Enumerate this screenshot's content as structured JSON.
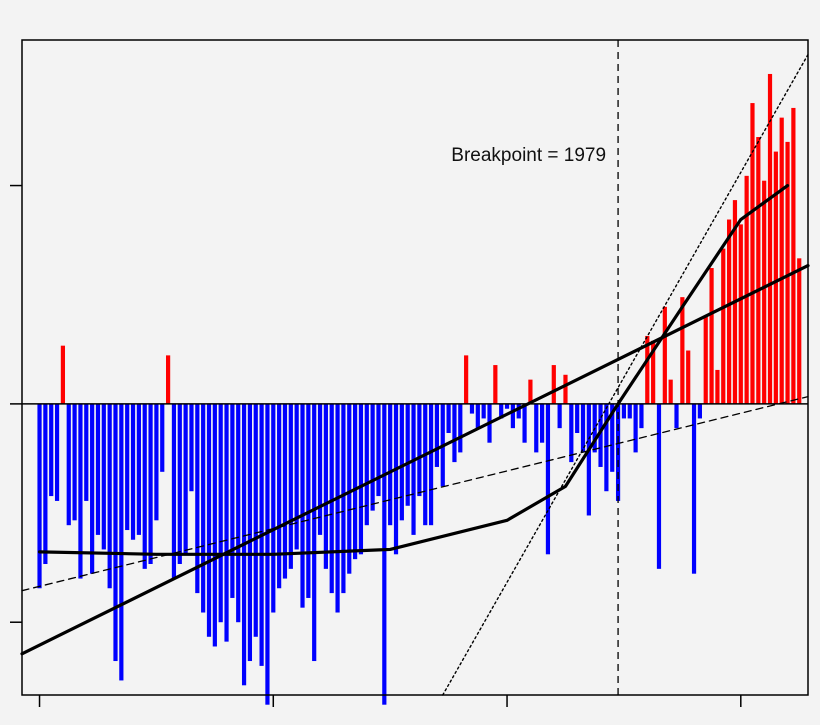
{
  "chart_data": {
    "type": "bar",
    "title": "",
    "xlabel": "",
    "ylabel": "",
    "xlim": [
      1877,
      2011.5
    ],
    "ylim": [
      -0.6,
      0.75
    ],
    "x_ticks": [
      1880,
      1920,
      1960,
      2000
    ],
    "y_ticks": [
      -0.45,
      0,
      0.45
    ],
    "show_tick_labels": false,
    "grid": false,
    "colors": {
      "positive": "#ff0000",
      "negative": "#0000ff",
      "lines": "#000000",
      "background": "#f3f3f3"
    },
    "annotation": {
      "text": "Breakpoint =  1979",
      "x": 1979
    },
    "series": [
      {
        "type": "bar",
        "x": [
          1880,
          1881,
          1882,
          1883,
          1884,
          1885,
          1886,
          1887,
          1888,
          1889,
          1890,
          1891,
          1892,
          1893,
          1894,
          1895,
          1896,
          1897,
          1898,
          1899,
          1900,
          1901,
          1902,
          1903,
          1904,
          1905,
          1906,
          1907,
          1908,
          1909,
          1910,
          1911,
          1912,
          1913,
          1914,
          1915,
          1916,
          1917,
          1918,
          1919,
          1920,
          1921,
          1922,
          1923,
          1924,
          1925,
          1926,
          1927,
          1928,
          1929,
          1930,
          1931,
          1932,
          1933,
          1934,
          1935,
          1936,
          1937,
          1938,
          1939,
          1940,
          1941,
          1942,
          1943,
          1944,
          1945,
          1946,
          1947,
          1948,
          1949,
          1950,
          1951,
          1952,
          1953,
          1954,
          1955,
          1956,
          1957,
          1958,
          1959,
          1960,
          1961,
          1962,
          1963,
          1964,
          1965,
          1966,
          1967,
          1968,
          1969,
          1970,
          1971,
          1972,
          1973,
          1974,
          1975,
          1976,
          1977,
          1978,
          1979,
          1980,
          1981,
          1982,
          1983,
          1984,
          1985,
          1986,
          1987,
          1988,
          1989,
          1990,
          1991,
          1992,
          1993,
          1994,
          1995,
          1996,
          1997,
          1998,
          1999,
          2000,
          2001,
          2002,
          2003,
          2004,
          2005,
          2006,
          2007,
          2008,
          2009,
          2010
        ],
        "values": [
          -0.38,
          -0.33,
          -0.19,
          -0.2,
          0.12,
          -0.25,
          -0.24,
          -0.36,
          -0.2,
          -0.35,
          -0.27,
          -0.3,
          -0.38,
          -0.53,
          -0.57,
          -0.26,
          -0.28,
          -0.27,
          -0.34,
          -0.33,
          -0.24,
          -0.14,
          0.1,
          -0.36,
          -0.33,
          -0.31,
          -0.18,
          -0.39,
          -0.43,
          -0.48,
          -0.5,
          -0.45,
          -0.49,
          -0.4,
          -0.45,
          -0.58,
          -0.53,
          -0.48,
          -0.54,
          -0.62,
          -0.43,
          -0.38,
          -0.36,
          -0.34,
          -0.3,
          -0.42,
          -0.4,
          -0.53,
          -0.27,
          -0.34,
          -0.39,
          -0.43,
          -0.39,
          -0.35,
          -0.32,
          -0.31,
          -0.25,
          -0.22,
          -0.19,
          -0.62,
          -0.25,
          -0.31,
          -0.24,
          -0.21,
          -0.27,
          -0.19,
          -0.25,
          -0.25,
          -0.13,
          -0.17,
          -0.06,
          -0.12,
          -0.1,
          0.1,
          -0.02,
          -0.05,
          -0.03,
          -0.08,
          0.08,
          -0.03,
          -0.01,
          -0.05,
          -0.03,
          -0.08,
          0.05,
          -0.1,
          -0.08,
          -0.31,
          0.08,
          -0.05,
          0.06,
          -0.12,
          -0.06,
          -0.1,
          -0.23,
          -0.1,
          -0.13,
          -0.18,
          -0.14,
          -0.2,
          -0.03,
          -0.03,
          -0.1,
          -0.05,
          0.14,
          0.13,
          -0.34,
          0.2,
          0.05,
          -0.05,
          0.22,
          0.11,
          -0.35,
          -0.03,
          0.18,
          0.28,
          0.07,
          0.32,
          0.38,
          0.42,
          0.37,
          0.47,
          0.62,
          0.55,
          0.46,
          0.68,
          0.52,
          0.59,
          0.54,
          0.61,
          0.3
        ]
      },
      {
        "type": "line",
        "name": "",
        "style": "solid",
        "x": [
          1877,
          2011.5
        ],
        "y": [
          -0.515,
          0.285
        ]
      },
      {
        "type": "line",
        "name": "",
        "style": "solid",
        "x": [
          1880,
          1900,
          1920,
          1940,
          1960,
          1970,
          1979,
          1990,
          2000,
          2008
        ],
        "y": [
          -0.305,
          -0.31,
          -0.31,
          -0.3,
          -0.24,
          -0.17,
          0.0,
          0.2,
          0.38,
          0.45
        ]
      },
      {
        "type": "line",
        "name": "",
        "style": "dashed",
        "x": [
          1877,
          2011.5
        ],
        "y": [
          -0.385,
          0.015
        ]
      },
      {
        "type": "line",
        "name": "",
        "style": "dotted",
        "x": [
          1949,
          2011.5
        ],
        "y": [
          -0.6,
          0.72
        ]
      },
      {
        "type": "vline",
        "name": "",
        "style": "dashed",
        "x": 1979
      }
    ]
  }
}
